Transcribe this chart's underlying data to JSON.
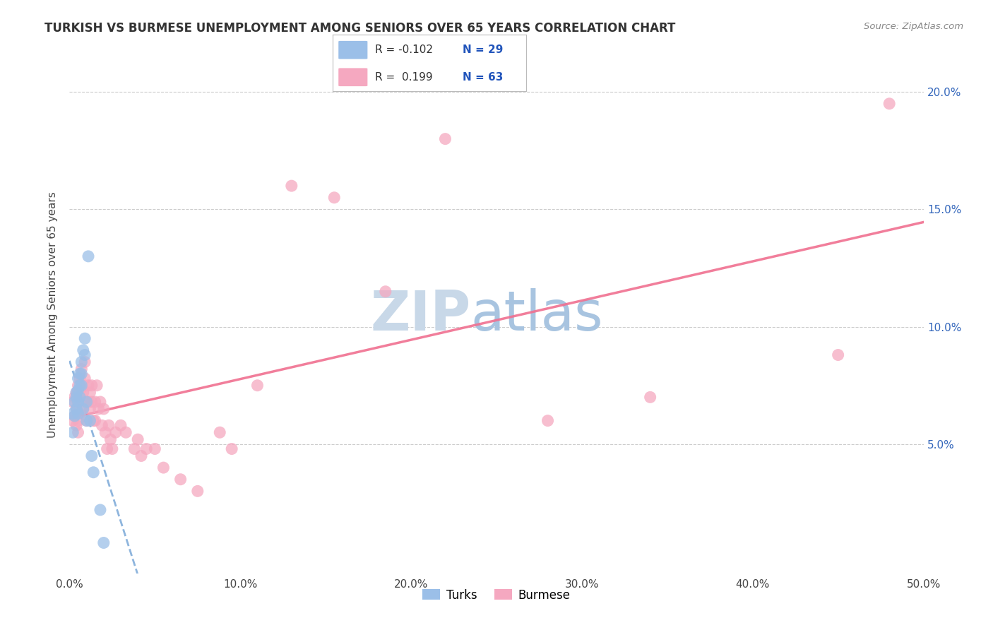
{
  "title": "TURKISH VS BURMESE UNEMPLOYMENT AMONG SENIORS OVER 65 YEARS CORRELATION CHART",
  "source": "Source: ZipAtlas.com",
  "ylabel": "Unemployment Among Seniors over 65 years",
  "legend_turks": "Turks",
  "legend_burmese": "Burmese",
  "legend_turks_R": "R = -0.102",
  "legend_turks_N": "N = 29",
  "legend_burmese_R": "R =  0.199",
  "legend_burmese_N": "N = 63",
  "turks_color": "#9BBFE8",
  "burmese_color": "#F5A8C0",
  "turks_line_color": "#7AA8D8",
  "burmese_line_color": "#F07090",
  "background_color": "#FFFFFF",
  "xlim": [
    0.0,
    0.5
  ],
  "ylim": [
    -0.005,
    0.215
  ],
  "yticks": [
    0.05,
    0.1,
    0.15,
    0.2
  ],
  "ytick_labels": [
    "5.0%",
    "10.0%",
    "15.0%",
    "20.0%"
  ],
  "xticks": [
    0.0,
    0.1,
    0.2,
    0.3,
    0.4,
    0.5
  ],
  "xtick_labels": [
    "0.0%",
    "10.0%",
    "20.0%",
    "30.0%",
    "40.0%",
    "50.0%"
  ],
  "turks_x": [
    0.002,
    0.002,
    0.003,
    0.003,
    0.004,
    0.004,
    0.004,
    0.005,
    0.005,
    0.005,
    0.005,
    0.006,
    0.006,
    0.006,
    0.007,
    0.007,
    0.007,
    0.008,
    0.008,
    0.009,
    0.009,
    0.01,
    0.01,
    0.011,
    0.012,
    0.013,
    0.014,
    0.018,
    0.02
  ],
  "turks_y": [
    0.063,
    0.055,
    0.068,
    0.062,
    0.07,
    0.065,
    0.072,
    0.078,
    0.073,
    0.068,
    0.063,
    0.08,
    0.075,
    0.07,
    0.085,
    0.08,
    0.075,
    0.09,
    0.065,
    0.095,
    0.088,
    0.068,
    0.06,
    0.13,
    0.06,
    0.045,
    0.038,
    0.022,
    0.008
  ],
  "burmese_x": [
    0.002,
    0.002,
    0.003,
    0.003,
    0.004,
    0.004,
    0.004,
    0.005,
    0.005,
    0.005,
    0.005,
    0.006,
    0.006,
    0.006,
    0.007,
    0.007,
    0.008,
    0.008,
    0.009,
    0.009,
    0.01,
    0.01,
    0.011,
    0.011,
    0.012,
    0.012,
    0.013,
    0.013,
    0.014,
    0.015,
    0.015,
    0.016,
    0.017,
    0.018,
    0.019,
    0.02,
    0.021,
    0.022,
    0.023,
    0.024,
    0.025,
    0.027,
    0.03,
    0.033,
    0.038,
    0.04,
    0.042,
    0.045,
    0.05,
    0.055,
    0.065,
    0.075,
    0.088,
    0.095,
    0.11,
    0.13,
    0.155,
    0.185,
    0.22,
    0.28,
    0.34,
    0.45,
    0.48
  ],
  "burmese_y": [
    0.068,
    0.06,
    0.07,
    0.062,
    0.065,
    0.058,
    0.072,
    0.075,
    0.068,
    0.06,
    0.055,
    0.078,
    0.07,
    0.063,
    0.082,
    0.074,
    0.072,
    0.065,
    0.085,
    0.078,
    0.068,
    0.06,
    0.075,
    0.068,
    0.072,
    0.065,
    0.075,
    0.068,
    0.06,
    0.068,
    0.06,
    0.075,
    0.065,
    0.068,
    0.058,
    0.065,
    0.055,
    0.048,
    0.058,
    0.052,
    0.048,
    0.055,
    0.058,
    0.055,
    0.048,
    0.052,
    0.045,
    0.048,
    0.048,
    0.04,
    0.035,
    0.03,
    0.055,
    0.048,
    0.075,
    0.16,
    0.155,
    0.115,
    0.18,
    0.06,
    0.07,
    0.088,
    0.195
  ],
  "watermark_zip": "ZIP",
  "watermark_atlas": "atlas",
  "watermark_zip_color": "#C8D8E8",
  "watermark_atlas_color": "#A8C4E0"
}
